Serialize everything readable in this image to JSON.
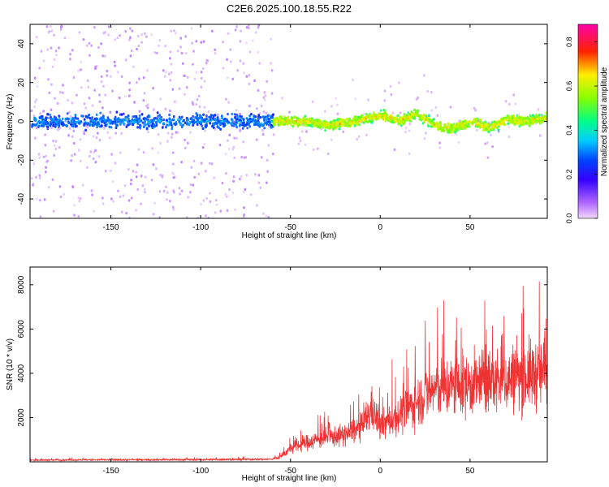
{
  "title": "C2E6.2025.100.18.55.R22",
  "chart_data": [
    {
      "type": "heatmap",
      "xlabel": "Height of straight line (km)",
      "ylabel": "Frequency (Hz)",
      "xlim": [
        -195,
        93
      ],
      "ylim": [
        -50,
        50
      ],
      "xticks": [
        -150,
        -100,
        -50,
        0,
        50
      ],
      "yticks": [
        -40,
        -20,
        0,
        20,
        40
      ],
      "colorbar": {
        "label": "Normalized spectral amplitude",
        "range": [
          0,
          0.88
        ],
        "ticks": [
          0.0,
          0.2,
          0.4,
          0.6,
          0.8
        ]
      },
      "center_frequency_trace": {
        "x": [
          -195,
          -60,
          -50,
          -40,
          -30,
          -20,
          -10,
          0,
          10,
          20,
          30,
          40,
          50,
          60,
          70,
          80,
          93
        ],
        "y": [
          0,
          0,
          0,
          0,
          -2,
          -1,
          1,
          3,
          0,
          4,
          -2,
          -4,
          0,
          -3,
          1,
          0,
          2
        ]
      }
    },
    {
      "type": "line",
      "xlabel": "Height of straight line (km)",
      "ylabel": "SNR (10 * v/v)",
      "xlim": [
        -195,
        93
      ],
      "ylim": [
        0,
        8800
      ],
      "xticks": [
        -150,
        -100,
        -50,
        0,
        50
      ],
      "yticks": [
        2000,
        4000,
        6000,
        8000
      ],
      "color": "#ee3333",
      "series": [
        {
          "x": [
            -195,
            -150,
            -100,
            -60,
            -55,
            -50,
            -40,
            -30,
            -20,
            -10,
            -5,
            0,
            10,
            20,
            30,
            40,
            50,
            60,
            70,
            80,
            90,
            93
          ],
          "values": [
            80,
            90,
            100,
            120,
            250,
            600,
            900,
            1100,
            1200,
            1600,
            2400,
            1600,
            2100,
            2700,
            3300,
            3400,
            3500,
            3600,
            3700,
            3900,
            4000,
            4200
          ]
        }
      ]
    }
  ]
}
